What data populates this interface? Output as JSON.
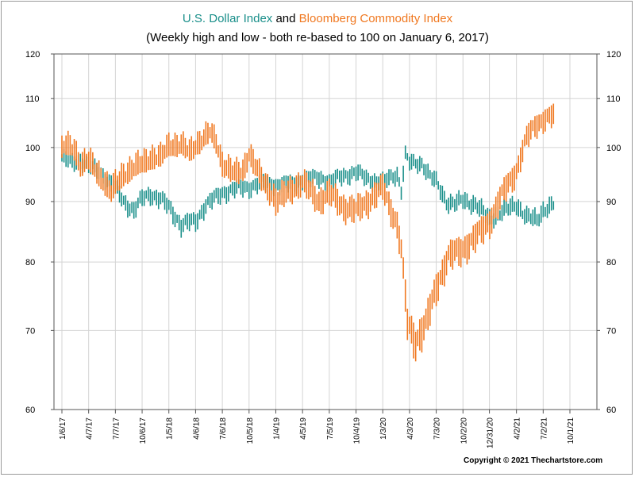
{
  "chart_data": {
    "type": "line",
    "title_parts": [
      {
        "text": "U.S. Dollar Index",
        "color": "#1a8f8a"
      },
      {
        "text": " and ",
        "color": "#000000"
      },
      {
        "text": "Bloomberg Commodity Index",
        "color": "#f07820"
      }
    ],
    "subtitle": "(Weekly high and low - both re-based to 100 on January 6, 2017)",
    "y_scale": "log",
    "ylim": [
      60,
      120
    ],
    "yticks": [
      60,
      70,
      80,
      90,
      100,
      110,
      120
    ],
    "xlim": [
      "2017-01-06",
      "2021-10-01"
    ],
    "xtick_labels": [
      "1/6/17",
      "4/7/17",
      "7/7/17",
      "10/6/17",
      "1/5/18",
      "4/6/18",
      "7/6/18",
      "10/5/18",
      "1/4/19",
      "4/5/19",
      "7/5/19",
      "10/4/19",
      "1/3/20",
      "4/3/20",
      "7/3/20",
      "10/2/20",
      "12/31/20",
      "4/2/21",
      "7/2/21",
      "10/1/21"
    ],
    "grid": true,
    "series": [
      {
        "name": "U.S. Dollar Index",
        "color": "#1a8f8a",
        "keypoints": [
          [
            "2017-01-06",
            98.0
          ],
          [
            "2017-02-10",
            97.0
          ],
          [
            "2017-03-10",
            97.5
          ],
          [
            "2017-04-07",
            96.5
          ],
          [
            "2017-05-12",
            95.5
          ],
          [
            "2017-06-16",
            93.5
          ],
          [
            "2017-07-07",
            92.5
          ],
          [
            "2017-08-04",
            90.0
          ],
          [
            "2017-09-08",
            88.5
          ],
          [
            "2017-10-06",
            90.5
          ],
          [
            "2017-11-03",
            91.3
          ],
          [
            "2017-12-08",
            90.5
          ],
          [
            "2018-01-05",
            89.0
          ],
          [
            "2018-02-16",
            86.0
          ],
          [
            "2018-03-16",
            86.5
          ],
          [
            "2018-04-06",
            86.5
          ],
          [
            "2018-05-11",
            89.5
          ],
          [
            "2018-07-06",
            91.5
          ],
          [
            "2018-08-17",
            92.3
          ],
          [
            "2018-10-05",
            92.5
          ],
          [
            "2018-11-16",
            93.5
          ],
          [
            "2019-01-04",
            93.0
          ],
          [
            "2019-03-08",
            93.3
          ],
          [
            "2019-04-05",
            94.0
          ],
          [
            "2019-06-07",
            94.3
          ],
          [
            "2019-07-05",
            93.5
          ],
          [
            "2019-08-23",
            94.7
          ],
          [
            "2019-10-04",
            95.3
          ],
          [
            "2019-11-15",
            94.0
          ],
          [
            "2020-01-03",
            93.5
          ],
          [
            "2020-02-21",
            95.0
          ],
          [
            "2020-03-06",
            92.0
          ],
          [
            "2020-03-20",
            98.5
          ],
          [
            "2020-04-03",
            97.0
          ],
          [
            "2020-05-15",
            97.0
          ],
          [
            "2020-06-12",
            94.5
          ],
          [
            "2020-07-03",
            93.5
          ],
          [
            "2020-08-07",
            90.0
          ],
          [
            "2020-09-04",
            89.5
          ],
          [
            "2020-10-02",
            90.3
          ],
          [
            "2020-11-13",
            89.5
          ],
          [
            "2020-12-31",
            87.0
          ],
          [
            "2021-02-05",
            88.0
          ],
          [
            "2021-03-05",
            88.7
          ],
          [
            "2021-04-02",
            89.5
          ],
          [
            "2021-05-07",
            87.3
          ],
          [
            "2021-06-11",
            86.8
          ],
          [
            "2021-07-02",
            88.6
          ],
          [
            "2021-08-06",
            89.4
          ]
        ]
      },
      {
        "name": "Bloomberg Commodity Index",
        "color": "#f07820",
        "keypoints": [
          [
            "2017-01-06",
            99.5
          ],
          [
            "2017-01-20",
            100.5
          ],
          [
            "2017-02-17",
            100.0
          ],
          [
            "2017-03-10",
            96.5
          ],
          [
            "2017-04-07",
            97.5
          ],
          [
            "2017-05-12",
            95.0
          ],
          [
            "2017-06-23",
            91.5
          ],
          [
            "2017-07-07",
            93.0
          ],
          [
            "2017-08-04",
            95.0
          ],
          [
            "2017-09-08",
            96.0
          ],
          [
            "2017-10-06",
            97.0
          ],
          [
            "2017-11-03",
            98.0
          ],
          [
            "2017-12-08",
            98.0
          ],
          [
            "2018-01-05",
            100.5
          ],
          [
            "2018-02-16",
            100.5
          ],
          [
            "2018-03-16",
            99.0
          ],
          [
            "2018-04-06",
            100.5
          ],
          [
            "2018-05-25",
            103.0
          ],
          [
            "2018-06-15",
            101.0
          ],
          [
            "2018-07-06",
            97.0
          ],
          [
            "2018-08-17",
            95.0
          ],
          [
            "2018-09-14",
            95.5
          ],
          [
            "2018-10-05",
            99.0
          ],
          [
            "2018-11-16",
            94.0
          ],
          [
            "2018-12-28",
            91.0
          ],
          [
            "2019-01-04",
            90.0
          ],
          [
            "2019-02-22",
            92.0
          ],
          [
            "2019-04-05",
            93.5
          ],
          [
            "2019-05-31",
            90.0
          ],
          [
            "2019-07-05",
            91.5
          ],
          [
            "2019-08-23",
            89.0
          ],
          [
            "2019-10-04",
            88.5
          ],
          [
            "2019-11-15",
            90.0
          ],
          [
            "2020-01-03",
            92.5
          ],
          [
            "2020-01-24",
            89.5
          ],
          [
            "2020-02-21",
            86.0
          ],
          [
            "2020-03-06",
            82.0
          ],
          [
            "2020-03-27",
            71.0
          ],
          [
            "2020-04-24",
            68.5
          ],
          [
            "2020-05-29",
            71.0
          ],
          [
            "2020-07-03",
            76.0
          ],
          [
            "2020-08-14",
            81.0
          ],
          [
            "2020-10-02",
            82.0
          ],
          [
            "2020-11-13",
            84.0
          ],
          [
            "2020-12-31",
            86.5
          ],
          [
            "2021-02-19",
            92.0
          ],
          [
            "2021-04-02",
            95.5
          ],
          [
            "2021-05-07",
            102.0
          ],
          [
            "2021-06-04",
            104.5
          ],
          [
            "2021-07-02",
            105.5
          ],
          [
            "2021-08-06",
            106.5
          ]
        ]
      }
    ]
  },
  "footer": {
    "copyright": "Copyright © 2021 Thechartstore.com"
  }
}
